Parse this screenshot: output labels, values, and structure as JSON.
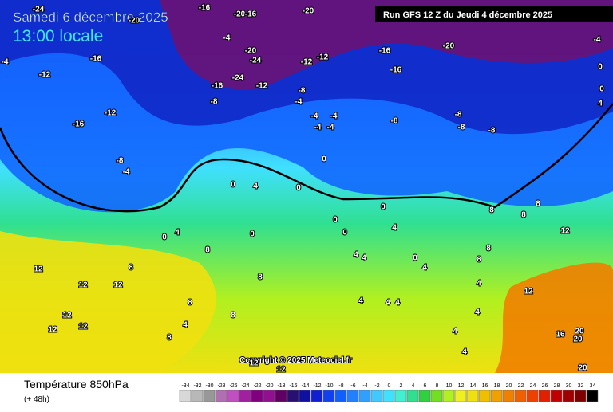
{
  "header": {
    "date": "Samedi 6 décembre 2025",
    "time": "13:00 locale",
    "run": "Run GFS 12 Z du Jeudi 4 décembre 2025"
  },
  "copyright": "Copyright © 2025 Meteociel.fr",
  "legend": {
    "title": "Température 850hPa",
    "subtitle": "(+ 48h)",
    "ticks": [
      -34,
      -32,
      -30,
      -28,
      -26,
      -24,
      -22,
      -20,
      -18,
      -16,
      -14,
      -12,
      -10,
      -8,
      -6,
      -4,
      -2,
      0,
      2,
      4,
      6,
      8,
      10,
      12,
      14,
      16,
      18,
      20,
      22,
      24,
      26,
      28,
      30,
      32,
      34
    ],
    "colors": [
      "#d8d8d8",
      "#b8b8b8",
      "#989898",
      "#b070b0",
      "#c050c0",
      "#a020a0",
      "#800080",
      "#901090",
      "#600060",
      "#281070",
      "#1010a0",
      "#1020d0",
      "#1040f0",
      "#1060ff",
      "#2080ff",
      "#30a0ff",
      "#40c8ff",
      "#40e0ff",
      "#40f0d0",
      "#30e090",
      "#30d040",
      "#70e020",
      "#b0f020",
      "#f0f020",
      "#f0e010",
      "#f0c000",
      "#f0a000",
      "#f08000",
      "#f06000",
      "#f04000",
      "#e02000",
      "#c00000",
      "#a00000",
      "#800000",
      "#000000"
    ]
  },
  "map_labels": [
    -24,
    -20,
    -16,
    -20,
    -16,
    -20,
    -20,
    -16,
    -4,
    0,
    0,
    4,
    -16,
    -12,
    -4,
    -20,
    -24,
    -12,
    -12,
    -16,
    -4,
    -16,
    -24,
    -12,
    -8,
    -8,
    -4,
    -12,
    -16,
    -4,
    -4,
    -4,
    -4,
    -8,
    -8,
    -8,
    -8,
    -8,
    -4,
    0,
    0,
    4,
    0,
    0,
    0,
    0,
    0,
    0,
    4,
    4,
    8,
    8,
    8,
    12,
    8,
    8,
    12,
    12,
    12,
    8,
    4,
    4,
    0,
    4,
    8,
    8,
    4,
    12,
    4,
    4,
    8,
    8,
    12,
    12,
    12,
    4,
    8,
    4,
    4,
    16,
    20,
    20,
    4,
    12,
    12,
    20,
    4
  ]
}
